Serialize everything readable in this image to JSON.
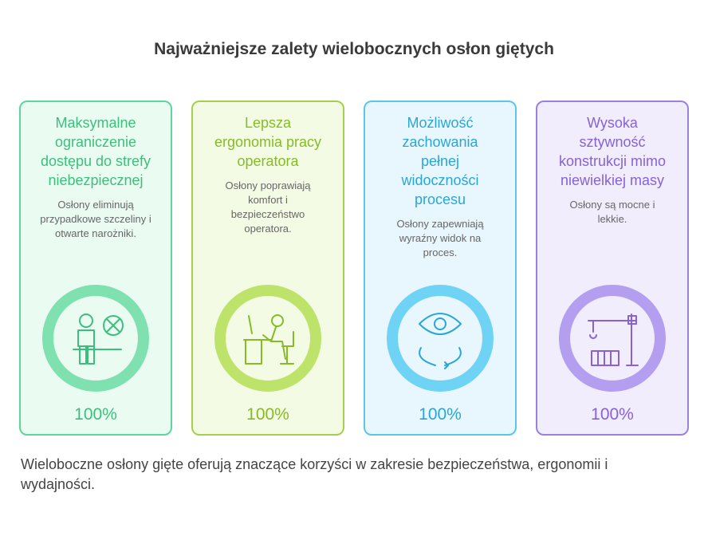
{
  "title": "Najważniejsze zalety wielobocznych osłon giętych",
  "cards": [
    {
      "title": "Maksymalne ograniczenie dostępu do strefy niebezpiecznej",
      "description": "Osłony eliminują przypadkowe szczeliny i otwarte narożniki.",
      "percent": "100%"
    },
    {
      "title": "Lepsza ergonomia pracy operatora",
      "description": "Osłony poprawiają komfort i bezpieczeństwo operatora.",
      "percent": "100%"
    },
    {
      "title": "Możliwość zachowania pełnej widoczności procesu",
      "description": "Osłony zapewniają wyraźny widok na proces.",
      "percent": "100%"
    },
    {
      "title": "Wysoka sztywność konstrukcji mimo niewielkiej masy",
      "description": "Osłony są mocne i lekkie.",
      "percent": "100%"
    }
  ],
  "footer": "Wieloboczne osłony gięte oferują znaczące korzyści w zakresie bezpieczeństwa, ergonomii i wydajności."
}
